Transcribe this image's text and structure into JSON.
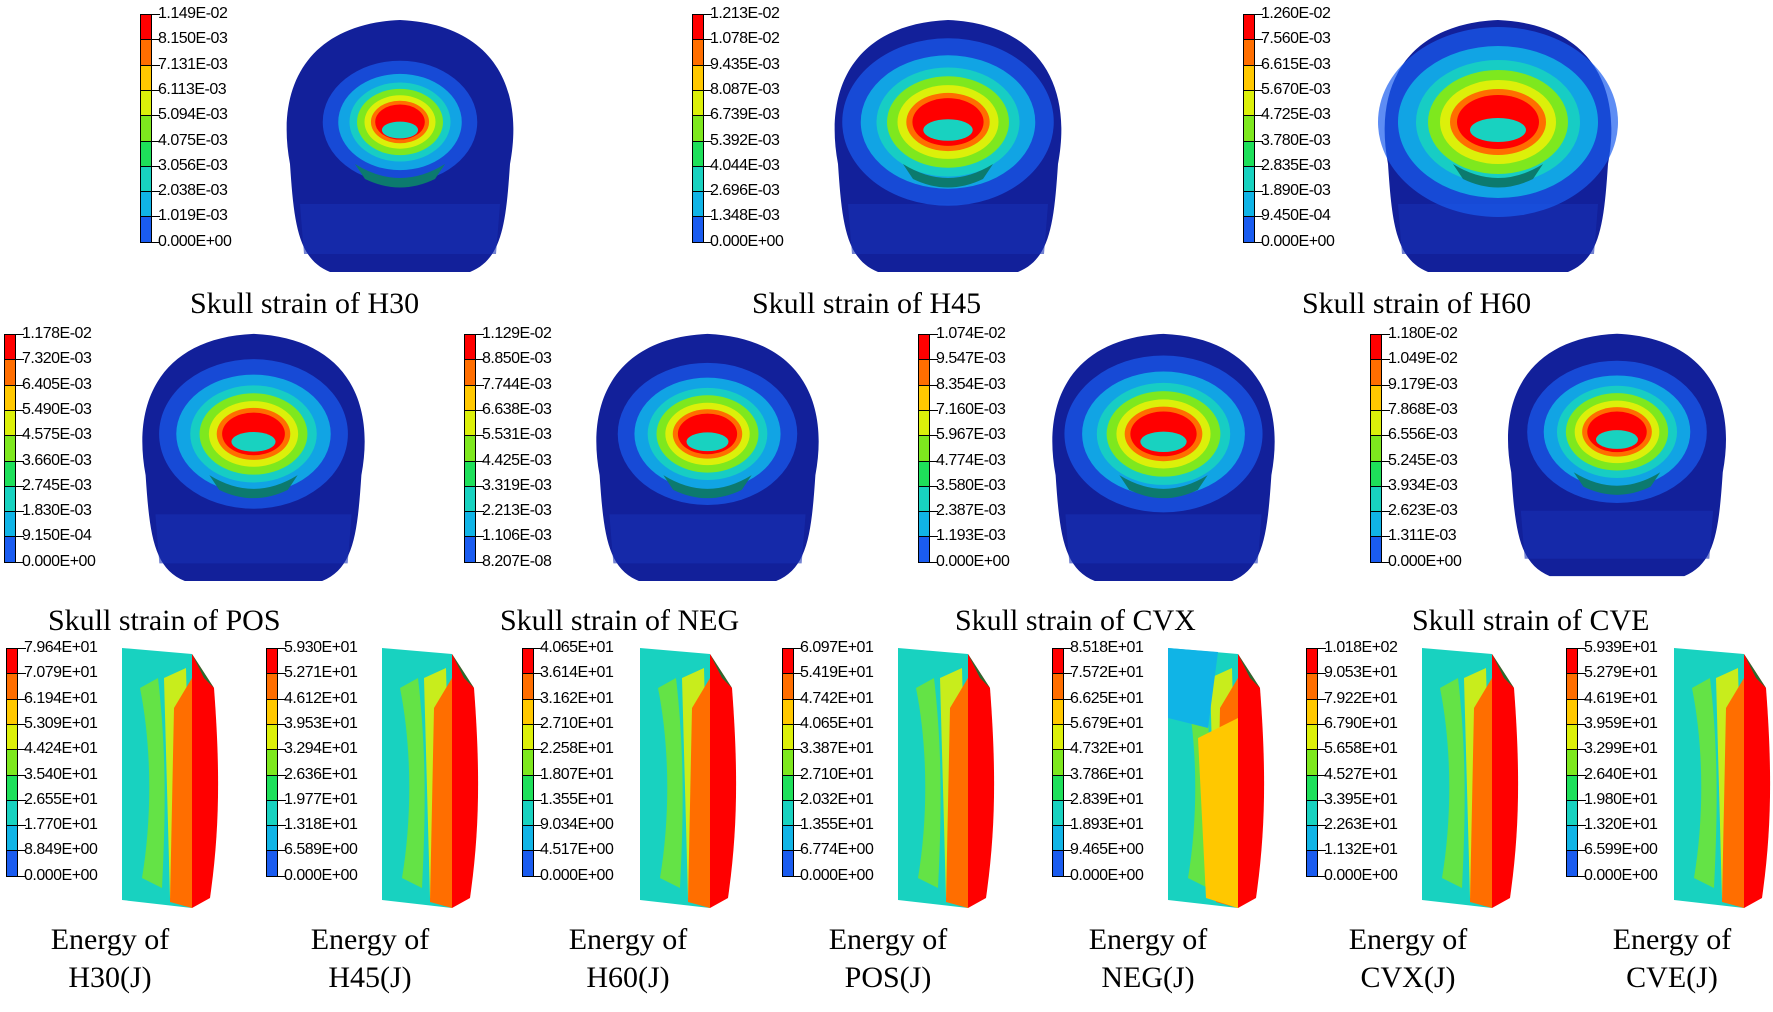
{
  "colors": [
    "#0000c8",
    "#1a5cf0",
    "#10b4e6",
    "#18d2c0",
    "#1ee05a",
    "#7ee81e",
    "#dcf00a",
    "#ffc800",
    "#ff6e00",
    "#ff0000"
  ],
  "skull_panels": [
    {
      "caption": "Skull strain of H30",
      "levels": [
        "1.149E-02",
        "8.150E-03",
        "7.131E-03",
        "6.113E-03",
        "5.094E-03",
        "4.075E-03",
        "3.056E-03",
        "2.038E-03",
        "1.019E-03",
        "0.000E+00"
      ]
    },
    {
      "caption": "Skull strain of H45",
      "levels": [
        "1.213E-02",
        "1.078E-02",
        "9.435E-03",
        "8.087E-03",
        "6.739E-03",
        "5.392E-03",
        "4.044E-03",
        "2.696E-03",
        "1.348E-03",
        "0.000E+00"
      ]
    },
    {
      "caption": "Skull strain of H60",
      "levels": [
        "1.260E-02",
        "7.560E-03",
        "6.615E-03",
        "5.670E-03",
        "4.725E-03",
        "3.780E-03",
        "2.835E-03",
        "1.890E-03",
        "9.450E-04",
        "0.000E+00"
      ]
    },
    {
      "caption": "Skull strain of POS",
      "levels": [
        "1.178E-02",
        "7.320E-03",
        "6.405E-03",
        "5.490E-03",
        "4.575E-03",
        "3.660E-03",
        "2.745E-03",
        "1.830E-03",
        "9.150E-04",
        "0.000E+00"
      ]
    },
    {
      "caption": "Skull strain of NEG",
      "levels": [
        "1.129E-02",
        "8.850E-03",
        "7.744E-03",
        "6.638E-03",
        "5.531E-03",
        "4.425E-03",
        "3.319E-03",
        "2.213E-03",
        "1.106E-03",
        "8.207E-08"
      ]
    },
    {
      "caption": "Skull strain of CVX",
      "levels": [
        "1.074E-02",
        "9.547E-03",
        "8.354E-03",
        "7.160E-03",
        "5.967E-03",
        "4.774E-03",
        "3.580E-03",
        "2.387E-03",
        "1.193E-03",
        "0.000E+00"
      ]
    },
    {
      "caption": "Skull strain of CVE",
      "levels": [
        "1.180E-02",
        "1.049E-02",
        "9.179E-03",
        "7.868E-03",
        "6.556E-03",
        "5.245E-03",
        "3.934E-03",
        "2.623E-03",
        "1.311E-03",
        "0.000E+00"
      ]
    }
  ],
  "energy_panels": [
    {
      "caption_line1": "Energy of",
      "caption_line2": "H30(J)",
      "levels": [
        "7.964E+01",
        "7.079E+01",
        "6.194E+01",
        "5.309E+01",
        "4.424E+01",
        "3.540E+01",
        "2.655E+01",
        "1.770E+01",
        "8.849E+00",
        "0.000E+00"
      ]
    },
    {
      "caption_line1": "Energy of",
      "caption_line2": "H45(J)",
      "levels": [
        "5.930E+01",
        "5.271E+01",
        "4.612E+01",
        "3.953E+01",
        "3.294E+01",
        "2.636E+01",
        "1.977E+01",
        "1.318E+01",
        "6.589E+00",
        "0.000E+00"
      ]
    },
    {
      "caption_line1": "Energy of",
      "caption_line2": "H60(J)",
      "levels": [
        "4.065E+01",
        "3.614E+01",
        "3.162E+01",
        "2.710E+01",
        "2.258E+01",
        "1.807E+01",
        "1.355E+01",
        "9.034E+00",
        "4.517E+00",
        "0.000E+00"
      ]
    },
    {
      "caption_line1": "Energy of",
      "caption_line2": "POS(J)",
      "levels": [
        "6.097E+01",
        "5.419E+01",
        "4.742E+01",
        "4.065E+01",
        "3.387E+01",
        "2.710E+01",
        "2.032E+01",
        "1.355E+01",
        "6.774E+00",
        "0.000E+00"
      ]
    },
    {
      "caption_line1": "Energy of",
      "caption_line2": "NEG(J)",
      "levels": [
        "8.518E+01",
        "7.572E+01",
        "6.625E+01",
        "5.679E+01",
        "4.732E+01",
        "3.786E+01",
        "2.839E+01",
        "1.893E+01",
        "9.465E+00",
        "0.000E+00"
      ]
    },
    {
      "caption_line1": "Energy of",
      "caption_line2": "CVX(J)",
      "levels": [
        "1.018E+02",
        "9.053E+01",
        "7.922E+01",
        "6.790E+01",
        "5.658E+01",
        "4.527E+01",
        "3.395E+01",
        "2.263E+01",
        "1.132E+01",
        "0.000E+00"
      ]
    },
    {
      "caption_line1": "Energy of",
      "caption_line2": "CVE(J)",
      "levels": [
        "5.939E+01",
        "5.279E+01",
        "4.619E+01",
        "3.959E+01",
        "3.299E+01",
        "2.640E+01",
        "1.980E+01",
        "1.320E+01",
        "6.599E+00",
        "0.000E+00"
      ]
    }
  ]
}
